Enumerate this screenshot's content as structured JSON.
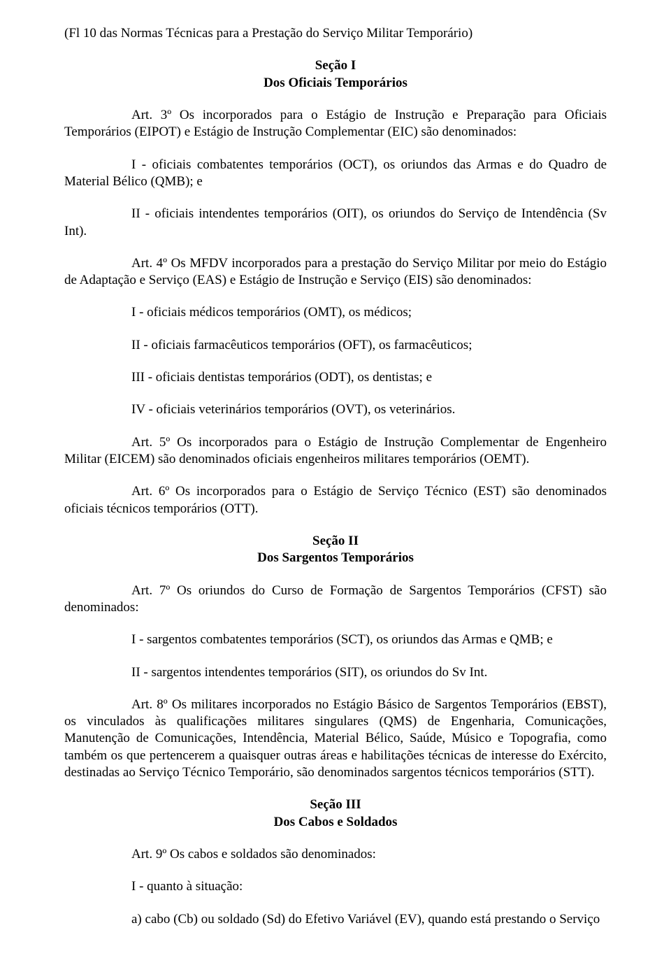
{
  "header": "(Fl 10 das Normas Técnicas para a Prestação do Serviço Militar Temporário)",
  "secI_title": "Seção I",
  "secI_sub": "Dos Oficiais Temporários",
  "art3": "Art. 3º Os incorporados para o Estágio de Instrução e Preparação para Oficiais Temporários (EIPOT) e Estágio de Instrução Complementar (EIC) são denominados:",
  "art3_I": "I - oficiais combatentes temporários (OCT), os oriundos das Armas e do Quadro de Material Bélico (QMB); e",
  "art3_II": "II - oficiais intendentes temporários (OIT), os oriundos do Serviço de Intendência (Sv Int).",
  "art4": "Art. 4º Os MFDV incorporados para a prestação do Serviço Militar por meio do Estágio de Adaptação e Serviço (EAS) e Estágio de Instrução e Serviço (EIS) são denominados:",
  "art4_I": "I - oficiais médicos temporários (OMT), os médicos;",
  "art4_II": "II - oficiais farmacêuticos temporários (OFT), os farmacêuticos;",
  "art4_III": "III - oficiais dentistas temporários (ODT), os dentistas; e",
  "art4_IV": "IV - oficiais veterinários temporários (OVT), os veterinários.",
  "art5": "Art. 5º Os incorporados para o Estágio de Instrução Complementar de Engenheiro Militar (EICEM) são denominados oficiais engenheiros militares temporários (OEMT).",
  "art6": "Art. 6º Os incorporados para o Estágio de Serviço Técnico (EST) são denominados oficiais técnicos temporários (OTT).",
  "secII_title": "Seção II",
  "secII_sub": "Dos Sargentos Temporários",
  "art7": "Art. 7º Os oriundos do Curso de Formação de Sargentos Temporários (CFST) são denominados:",
  "art7_I": "I - sargentos combatentes temporários (SCT), os oriundos das Armas e QMB; e",
  "art7_II": "II - sargentos intendentes temporários (SIT), os oriundos do Sv Int.",
  "art8": "Art. 8º Os militares incorporados no Estágio Básico de Sargentos Temporários (EBST), os vinculados às qualificações militares singulares (QMS) de Engenharia, Comunicações, Manutenção de Comunicações, Intendência, Material Bélico, Saúde, Músico e Topografia, como também os que pertencerem a quaisquer outras áreas e habilitações técnicas de interesse do Exército, destinadas ao Serviço Técnico Temporário, são denominados sargentos técnicos temporários (STT).",
  "secIII_title": "Seção III",
  "secIII_sub": "Dos Cabos e Soldados",
  "art9": "Art. 9º Os cabos e soldados são denominados:",
  "art9_I": "I - quanto à situação:",
  "art9_a": "a) cabo (Cb) ou soldado (Sd) do Efetivo Variável (EV), quando está prestando o Serviço"
}
